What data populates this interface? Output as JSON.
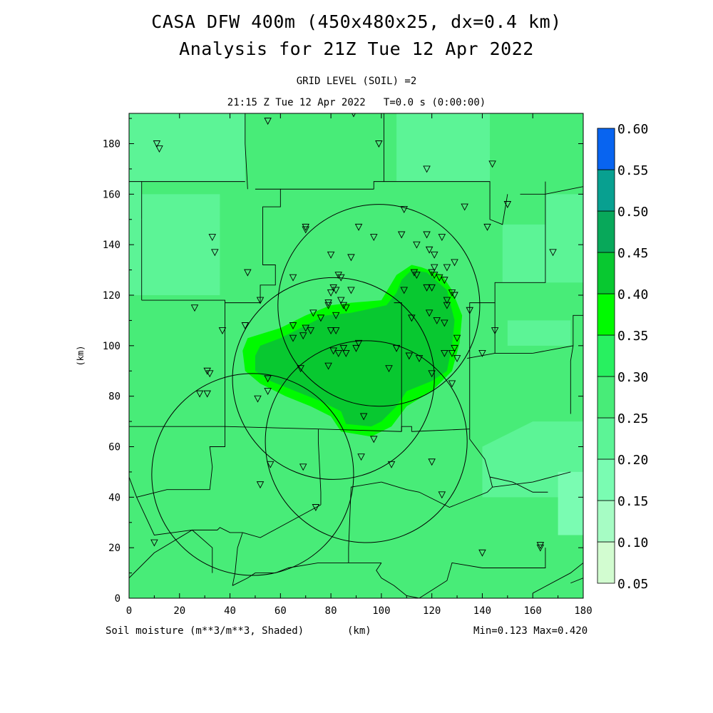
{
  "header": {
    "title_line1": "CASA DFW 400m (450x480x25, dx=0.4 km)",
    "title_line2": "Analysis for 21Z Tue 12 Apr 2022",
    "grid_level": "GRID LEVEL (SOIL) =2",
    "time_line": "21:15 Z Tue 12 Apr 2022   T=0.0 s (0:00:00)"
  },
  "footer": {
    "variable_label": "Soil moisture (m**3/m**3, Shaded)",
    "unit_label": "(km)",
    "minmax": "Min=0.123 Max=0.420"
  },
  "chart_data": {
    "type": "heatmap",
    "title": "CASA DFW 400m (450x480x25, dx=0.4 km)",
    "subtitle": "Analysis for 21Z Tue 12 Apr 2022",
    "xlabel": "(km)",
    "ylabel": "(km)",
    "xlim": [
      0,
      180
    ],
    "ylim": [
      0,
      192
    ],
    "x_ticks": [
      0,
      20,
      40,
      60,
      80,
      100,
      120,
      140,
      160,
      180
    ],
    "y_ticks": [
      0,
      20,
      40,
      60,
      80,
      100,
      120,
      140,
      160,
      180
    ],
    "x_tick_labels": [
      "0",
      "20",
      "40",
      "60",
      "80",
      "100",
      "120",
      "140",
      "160",
      "180"
    ],
    "y_tick_labels": [
      "0",
      "20",
      "40",
      "60",
      "80",
      "100",
      "120",
      "140",
      "160",
      "180"
    ],
    "colorbar": {
      "levels": [
        0.05,
        0.1,
        0.15,
        0.2,
        0.25,
        0.3,
        0.35,
        0.4,
        0.45,
        0.5,
        0.55,
        0.6
      ],
      "labels": [
        "0.05",
        "0.10",
        "0.15",
        "0.20",
        "0.25",
        "0.30",
        "0.35",
        "0.40",
        "0.45",
        "0.50",
        "0.55",
        "0.60"
      ],
      "colors": [
        "#d2fcd0",
        "#a6fcc4",
        "#7afcb2",
        "#5cf496",
        "#48ec78",
        "#28f060",
        "#00fa00",
        "#08c830",
        "#08a85a",
        "#08a090",
        "#0888b0",
        "#0864f0"
      ]
    },
    "shaded_regions": [
      {
        "level_range": [
          0.35,
          0.4
        ],
        "polygon": [
          [
            47,
            103
          ],
          [
            60,
            107
          ],
          [
            70,
            112
          ],
          [
            80,
            116
          ],
          [
            88,
            117
          ],
          [
            100,
            118
          ],
          [
            103,
            123
          ],
          [
            106,
            128
          ],
          [
            112,
            132
          ],
          [
            116,
            131
          ],
          [
            124,
            128
          ],
          [
            128,
            122
          ],
          [
            132,
            112
          ],
          [
            131,
            101
          ],
          [
            128,
            90
          ],
          [
            120,
            82
          ],
          [
            110,
            76
          ],
          [
            104,
            68
          ],
          [
            96,
            64
          ],
          [
            84,
            66
          ],
          [
            80,
            72
          ],
          [
            72,
            76
          ],
          [
            62,
            80
          ],
          [
            52,
            85
          ],
          [
            46,
            90
          ],
          [
            45,
            98
          ]
        ]
      },
      {
        "level_range": [
          0.4,
          0.45
        ],
        "polygon": [
          [
            52,
            100
          ],
          [
            60,
            103
          ],
          [
            70,
            108
          ],
          [
            78,
            112
          ],
          [
            88,
            113
          ],
          [
            102,
            116
          ],
          [
            106,
            121
          ],
          [
            108,
            126
          ],
          [
            112,
            130
          ],
          [
            118,
            129
          ],
          [
            126,
            122
          ],
          [
            129,
            110
          ],
          [
            128,
            100
          ],
          [
            126,
            90
          ],
          [
            120,
            86
          ],
          [
            110,
            82
          ],
          [
            106,
            76
          ],
          [
            100,
            70
          ],
          [
            96,
            68
          ],
          [
            86,
            69
          ],
          [
            84,
            74
          ],
          [
            76,
            78
          ],
          [
            66,
            82
          ],
          [
            56,
            86
          ],
          [
            50,
            90
          ],
          [
            50,
            96
          ]
        ]
      }
    ],
    "range_rings": [
      {
        "center": [
          99,
          116
        ],
        "radius": 40
      },
      {
        "center": [
          81,
          87
        ],
        "radius": 40
      },
      {
        "center": [
          94,
          62
        ],
        "radius": 40
      },
      {
        "center": [
          49,
          49
        ],
        "radius": 40
      }
    ],
    "stations": [
      [
        89,
        192
      ],
      [
        55,
        189
      ],
      [
        11,
        180
      ],
      [
        12,
        178
      ],
      [
        99,
        180
      ],
      [
        118,
        170
      ],
      [
        144,
        172
      ],
      [
        109,
        154
      ],
      [
        133,
        155
      ],
      [
        150,
        156
      ],
      [
        33,
        143
      ],
      [
        70,
        147
      ],
      [
        70,
        146
      ],
      [
        142,
        147
      ],
      [
        91,
        147
      ],
      [
        97,
        143
      ],
      [
        108,
        144
      ],
      [
        118,
        144
      ],
      [
        124,
        143
      ],
      [
        114,
        140
      ],
      [
        119,
        138
      ],
      [
        121,
        136
      ],
      [
        34,
        137
      ],
      [
        80,
        136
      ],
      [
        88,
        135
      ],
      [
        129,
        133
      ],
      [
        121,
        131
      ],
      [
        126,
        131
      ],
      [
        120,
        129
      ],
      [
        168,
        137
      ],
      [
        47,
        129
      ],
      [
        65,
        127
      ],
      [
        83,
        128
      ],
      [
        84,
        127
      ],
      [
        113,
        129
      ],
      [
        114,
        128
      ],
      [
        121,
        128
      ],
      [
        123,
        127
      ],
      [
        125,
        126
      ],
      [
        81,
        123
      ],
      [
        82,
        122
      ],
      [
        88,
        122
      ],
      [
        80,
        121
      ],
      [
        109,
        122
      ],
      [
        118,
        123
      ],
      [
        120,
        123
      ],
      [
        128,
        121
      ],
      [
        129,
        120
      ],
      [
        126,
        118
      ],
      [
        52,
        118
      ],
      [
        84,
        118
      ],
      [
        79,
        117
      ],
      [
        79,
        116
      ],
      [
        126,
        116
      ],
      [
        85,
        116
      ],
      [
        86,
        115
      ],
      [
        135,
        114
      ],
      [
        26,
        115
      ],
      [
        82,
        112
      ],
      [
        119,
        113
      ],
      [
        73,
        113
      ],
      [
        76,
        111
      ],
      [
        112,
        111
      ],
      [
        122,
        110
      ],
      [
        125,
        109
      ],
      [
        65,
        108
      ],
      [
        46,
        108
      ],
      [
        70,
        107
      ],
      [
        72,
        106
      ],
      [
        80,
        106
      ],
      [
        82,
        106
      ],
      [
        37,
        106
      ],
      [
        145,
        106
      ],
      [
        69,
        104
      ],
      [
        65,
        103
      ],
      [
        130,
        103
      ],
      [
        91,
        101
      ],
      [
        90,
        99
      ],
      [
        85,
        99
      ],
      [
        106,
        99
      ],
      [
        129,
        99
      ],
      [
        86,
        97
      ],
      [
        81,
        98
      ],
      [
        83,
        97
      ],
      [
        125,
        97
      ],
      [
        128,
        97
      ],
      [
        140,
        97
      ],
      [
        111,
        96
      ],
      [
        130,
        95
      ],
      [
        115,
        95
      ],
      [
        79,
        92
      ],
      [
        68,
        91
      ],
      [
        103,
        91
      ],
      [
        120,
        89
      ],
      [
        31,
        90
      ],
      [
        32,
        89
      ],
      [
        128,
        85
      ],
      [
        55,
        87
      ],
      [
        55,
        82
      ],
      [
        28,
        81
      ],
      [
        31,
        81
      ],
      [
        51,
        79
      ],
      [
        93,
        72
      ],
      [
        97,
        63
      ],
      [
        92,
        56
      ],
      [
        52,
        45
      ],
      [
        56,
        53
      ],
      [
        69,
        52
      ],
      [
        104,
        53
      ],
      [
        120,
        54
      ],
      [
        124,
        41
      ],
      [
        74,
        36
      ],
      [
        10,
        22
      ],
      [
        140,
        18
      ],
      [
        163,
        21
      ],
      [
        163,
        20
      ]
    ],
    "minmax": {
      "min": 0.123,
      "max": 0.42
    }
  },
  "map_outlines": {
    "county_lines": [
      [
        [
          0,
          165
        ],
        [
          5,
          165
        ],
        [
          5,
          150
        ]
      ],
      [
        [
          5,
          150
        ],
        [
          5,
          118
        ]
      ],
      [
        [
          5,
          118
        ],
        [
          38,
          118
        ],
        [
          38,
          117
        ]
      ],
      [
        [
          38,
          117
        ],
        [
          52,
          117
        ]
      ],
      [
        [
          52,
          117
        ],
        [
          52,
          124
        ],
        [
          58,
          124
        ],
        [
          58,
          132
        ],
        [
          53,
          132
        ],
        [
          53,
          155
        ],
        [
          60,
          155
        ],
        [
          60,
          162
        ],
        [
          50,
          162
        ]
      ],
      [
        [
          60,
          162
        ],
        [
          97,
          162
        ]
      ],
      [
        [
          97,
          162
        ],
        [
          97,
          165
        ],
        [
          101,
          165
        ],
        [
          101,
          192
        ]
      ],
      [
        [
          101,
          165
        ],
        [
          143,
          165
        ],
        [
          143,
          162
        ],
        [
          143,
          150
        ],
        [
          148,
          148
        ],
        [
          150,
          160
        ]
      ],
      [
        [
          155,
          160
        ],
        [
          165,
          160
        ],
        [
          180,
          163
        ]
      ],
      [
        [
          47,
          162
        ],
        [
          46,
          180
        ],
        [
          46,
          192
        ]
      ],
      [
        [
          5,
          165
        ],
        [
          46,
          165
        ]
      ],
      [
        [
          38,
          117
        ],
        [
          38,
          102
        ],
        [
          38,
          68
        ]
      ],
      [
        [
          0,
          68
        ],
        [
          38,
          68
        ]
      ],
      [
        [
          38,
          68
        ],
        [
          75,
          67
        ]
      ],
      [
        [
          75,
          67
        ],
        [
          75,
          62
        ],
        [
          76,
          42
        ],
        [
          76,
          37
        ]
      ],
      [
        [
          75,
          67
        ],
        [
          108,
          66
        ]
      ],
      [
        [
          108,
          66
        ],
        [
          108,
          117
        ],
        [
          105,
          117
        ]
      ],
      [
        [
          108,
          66
        ],
        [
          108,
          68
        ],
        [
          112,
          68
        ],
        [
          112,
          66
        ]
      ],
      [
        [
          112,
          66
        ],
        [
          135,
          67
        ]
      ],
      [
        [
          135,
          67
        ],
        [
          135,
          117
        ],
        [
          145,
          117
        ],
        [
          145,
          125
        ],
        [
          165,
          125
        ],
        [
          165,
          165
        ]
      ],
      [
        [
          145,
          117
        ],
        [
          145,
          97
        ],
        [
          160,
          97
        ]
      ],
      [
        [
          160,
          97
        ],
        [
          176,
          100
        ],
        [
          176,
          112
        ],
        [
          180,
          112
        ]
      ],
      [
        [
          176,
          100
        ],
        [
          175,
          94
        ],
        [
          175,
          73
        ]
      ],
      [
        [
          145,
          97
        ],
        [
          134,
          95
        ]
      ],
      [
        [
          135,
          67
        ],
        [
          135,
          63
        ],
        [
          141,
          55
        ],
        [
          143,
          48
        ],
        [
          144,
          44
        ],
        [
          142,
          42
        ],
        [
          127,
          36
        ],
        [
          115,
          42
        ],
        [
          110,
          43
        ],
        [
          100,
          46
        ]
      ],
      [
        [
          143,
          48
        ],
        [
          152,
          46
        ],
        [
          160,
          42
        ],
        [
          166,
          42
        ]
      ],
      [
        [
          144,
          44
        ],
        [
          160,
          46
        ],
        [
          175,
          50
        ]
      ],
      [
        [
          100,
          46
        ],
        [
          88,
          44
        ],
        [
          87,
          20
        ],
        [
          87,
          14
        ]
      ],
      [
        [
          87,
          14
        ],
        [
          100,
          14
        ]
      ],
      [
        [
          100,
          14
        ],
        [
          98,
          11
        ],
        [
          100,
          8
        ],
        [
          105,
          5
        ],
        [
          110,
          1
        ],
        [
          115,
          0
        ]
      ],
      [
        [
          115,
          0
        ],
        [
          126,
          7
        ],
        [
          128,
          14
        ],
        [
          140,
          12
        ],
        [
          165,
          12
        ],
        [
          165,
          20
        ]
      ],
      [
        [
          0,
          48
        ],
        [
          3,
          40
        ],
        [
          15,
          43
        ],
        [
          32,
          43
        ],
        [
          33,
          52
        ],
        [
          32,
          60
        ],
        [
          38,
          60
        ],
        [
          38,
          68
        ]
      ],
      [
        [
          3,
          40
        ],
        [
          10,
          25
        ],
        [
          25,
          27
        ],
        [
          35,
          27
        ],
        [
          36,
          28
        ],
        [
          40,
          26
        ],
        [
          45,
          26
        ]
      ],
      [
        [
          25,
          27
        ],
        [
          33,
          20
        ],
        [
          33,
          10
        ]
      ],
      [
        [
          45,
          26
        ],
        [
          52,
          24
        ],
        [
          76,
          37
        ]
      ],
      [
        [
          45,
          26
        ],
        [
          43,
          20
        ],
        [
          42,
          10
        ],
        [
          41,
          5
        ]
      ],
      [
        [
          41,
          5
        ],
        [
          47,
          8
        ],
        [
          50,
          10
        ],
        [
          58,
          10
        ],
        [
          63,
          12
        ]
      ],
      [
        [
          0,
          8
        ],
        [
          10,
          18
        ],
        [
          25,
          27
        ]
      ],
      [
        [
          0,
          8
        ],
        [
          0,
          48
        ]
      ],
      [
        [
          63,
          12
        ],
        [
          75,
          14
        ],
        [
          87,
          14
        ]
      ],
      [
        [
          160,
          2
        ],
        [
          175,
          10
        ],
        [
          180,
          14
        ]
      ],
      [
        [
          175,
          6
        ],
        [
          180,
          8
        ]
      ]
    ]
  }
}
